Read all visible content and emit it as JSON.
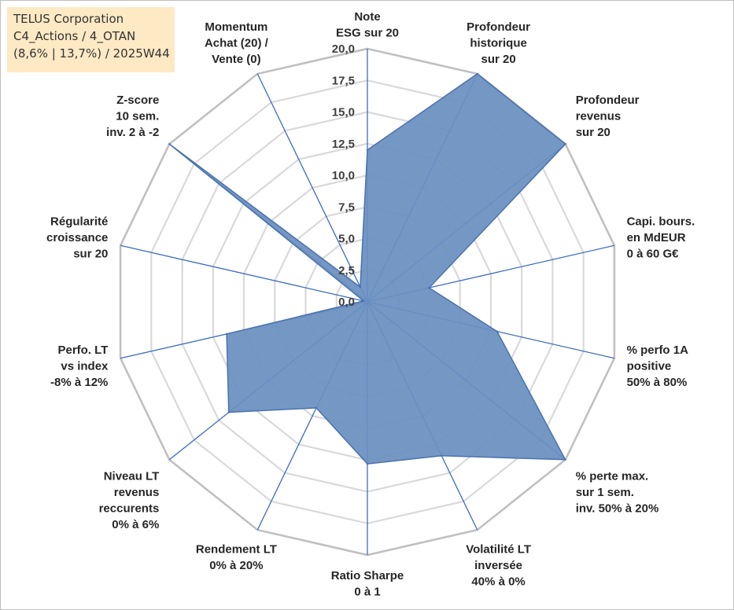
{
  "infobox": {
    "line1": "TELUS Corporation",
    "line2": "C4_Actions / 4_OTAN",
    "line3": "(8,6% | 13,7%) / 2025W44"
  },
  "colors": {
    "fill": "#6a8fbf",
    "stroke": "#4a72b0",
    "spoke": "#3b6cc4",
    "grid_outer": "#c0c0c0",
    "grid_inner": "#d9d9d9",
    "info_bg": "#fde9c4"
  },
  "chart_data": {
    "type": "radar",
    "title": "",
    "rmin": 0,
    "rmax": 20,
    "ticks": [
      "0,0",
      "2,5",
      "5,0",
      "7,5",
      "10,0",
      "12,5",
      "15,0",
      "17,5",
      "20,0"
    ],
    "tick_values": [
      0,
      2.5,
      5,
      7.5,
      10,
      12.5,
      15,
      17.5,
      20
    ],
    "categories": [
      [
        "Note",
        "ESG sur 20"
      ],
      [
        "Profondeur",
        "historique",
        "sur 20"
      ],
      [
        "Profondeur",
        "revenus",
        "sur 20"
      ],
      [
        "Capi. bours.",
        "en MdEUR",
        "0 à 60 G€"
      ],
      [
        "% perfo 1A",
        "positive",
        "50% à 80%"
      ],
      [
        "% perte max.",
        "sur 1 sem.",
        "inv. 50% à 20%"
      ],
      [
        "Volatilité LT",
        "inversée",
        "40% à 0%"
      ],
      [
        "Ratio Sharpe",
        "0 à 1"
      ],
      [
        "Rendement LT",
        "0% à 20%"
      ],
      [
        "Niveau LT",
        "revenus",
        "reccurents",
        "0% à 6%"
      ],
      [
        "Perfo. LT",
        "vs index",
        "-8% à 12%"
      ],
      [
        "Régularité",
        "croissance",
        "sur 20"
      ],
      [
        "Z-score",
        "10 sem.",
        "inv. 2 à -2"
      ],
      [
        "Momentum",
        "Achat (20) /",
        "Vente (0)"
      ]
    ],
    "series": [
      {
        "name": "TELUS Corporation",
        "values": [
          12.0,
          20.0,
          20.0,
          5.0,
          10.5,
          20.0,
          13.5,
          12.8,
          9.3,
          14.0,
          11.4,
          0.3,
          20.0,
          1.3
        ]
      }
    ]
  }
}
